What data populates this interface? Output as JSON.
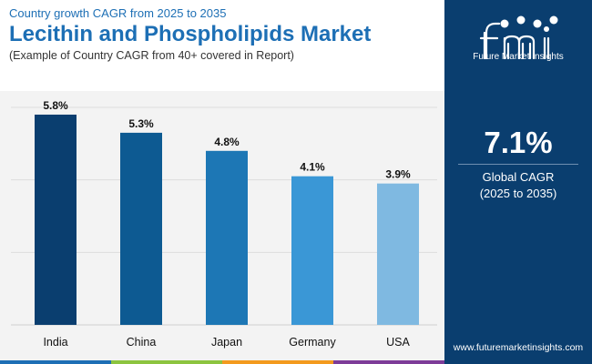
{
  "header": {
    "subtitle": "Country growth CAGR from 2025 to 2035",
    "title": "Lecithin and Phospholipids Market",
    "note": "(Example of Country CAGR from 40+ covered in Report)"
  },
  "chart_data": {
    "type": "bar",
    "categories": [
      "India",
      "China",
      "Japan",
      "Germany",
      "USA"
    ],
    "values": [
      5.8,
      5.3,
      4.8,
      4.1,
      3.9
    ],
    "data_labels": [
      "5.8%",
      "5.3%",
      "4.8%",
      "4.1%",
      "3.9%"
    ],
    "colors": [
      "#0a3e6f",
      "#0d5a92",
      "#1d77b5",
      "#3a97d6",
      "#7fb9e1"
    ],
    "ylim": [
      0,
      6.0
    ],
    "grid": true,
    "legend": "none"
  },
  "panel": {
    "brand_name": "Future Market Insights",
    "cagr_value": "7.1%",
    "cagr_label": "Global CAGR",
    "cagr_period": "(2025 to 2035)",
    "website": "www.futuremarketinsights.com",
    "background_color": "#0a3e6f"
  },
  "bottom_strip_colors": [
    "#1d6fb5",
    "#8cc43f",
    "#f39a1e",
    "#7d3c98"
  ]
}
